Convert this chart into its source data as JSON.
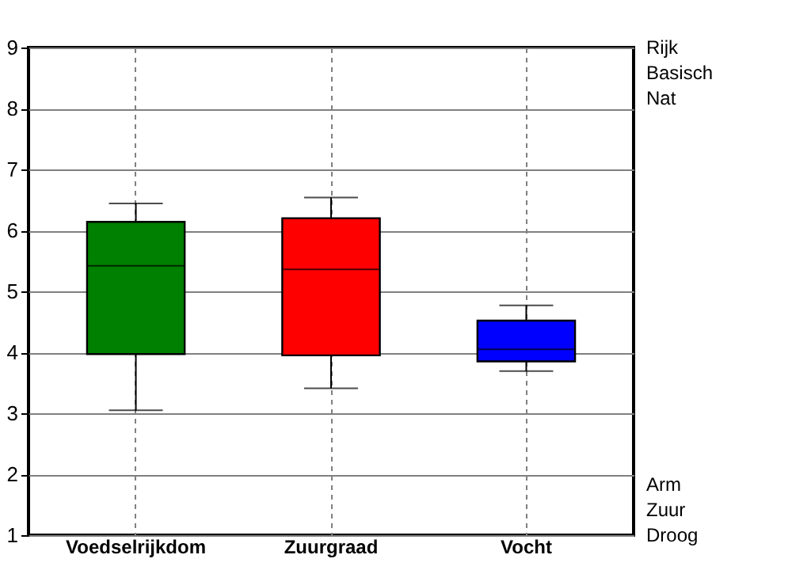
{
  "chart_data": {
    "type": "box",
    "categories": [
      "Voedselrijkdom",
      "Zuurgraad",
      "Vocht"
    ],
    "boxes": [
      {
        "low": 3.05,
        "q1": 3.97,
        "median": 5.42,
        "q3": 6.14,
        "high": 6.44
      },
      {
        "low": 3.41,
        "q1": 3.95,
        "median": 5.36,
        "q3": 6.2,
        "high": 6.54
      },
      {
        "low": 3.69,
        "q1": 3.85,
        "median": 4.05,
        "q3": 4.52,
        "high": 4.77
      }
    ],
    "colors": [
      "#008000",
      "#ff0000",
      "#0000ff"
    ],
    "ylim": [
      1,
      9
    ],
    "yticks": [
      1,
      2,
      3,
      4,
      5,
      6,
      7,
      8,
      9
    ],
    "grid": true,
    "annotations": [
      "Rijk",
      "Basisch",
      "Nat",
      "Arm",
      "Zuur",
      "Droog"
    ]
  }
}
